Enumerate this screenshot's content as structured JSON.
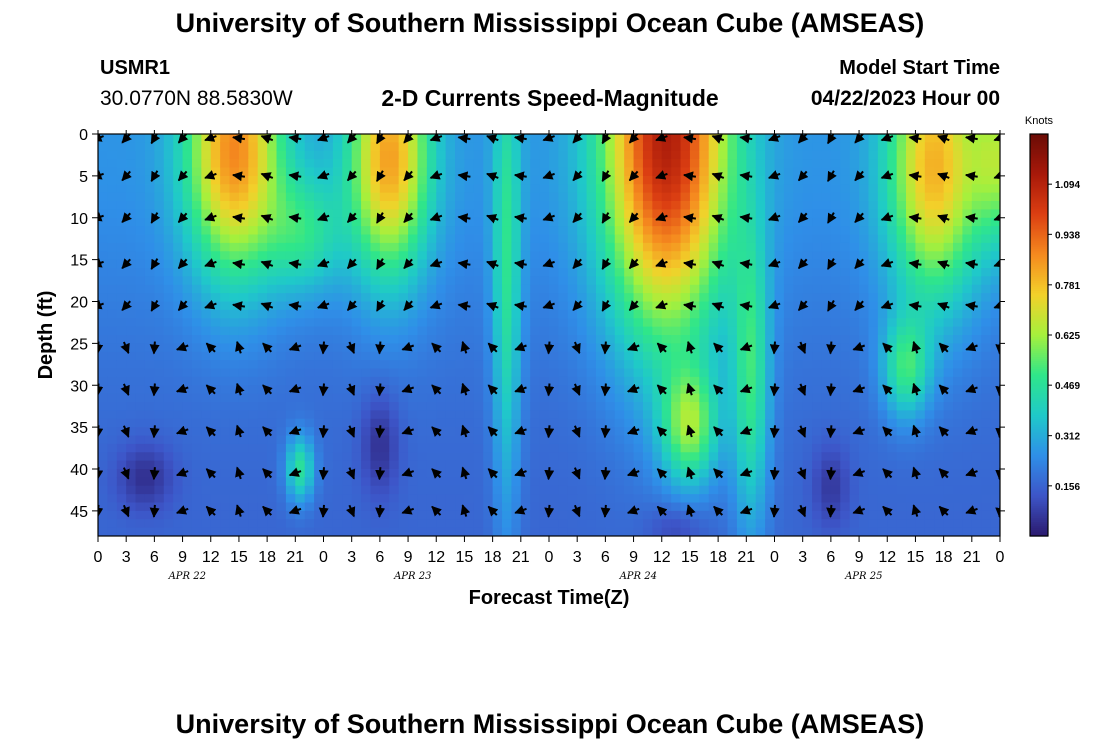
{
  "header": {
    "title": "University of Southern Mississippi Ocean Cube (AMSEAS)",
    "station_id": "USMR1",
    "station_coords": "30.0770N  88.5830W",
    "subtitle": "2-D Currents Speed-Magnitude",
    "model_start_label": "Model Start Time",
    "model_start_value": "04/22/2023 Hour 00"
  },
  "footer": {
    "title": "University of Southern Mississippi Ocean Cube (AMSEAS)"
  },
  "chart_data": {
    "type": "heatmap",
    "title": "2-D Currents Speed-Magnitude",
    "xlabel": "Forecast Time(Z)",
    "ylabel": "Depth (ft)",
    "x_hours": [
      0,
      96
    ],
    "x_tick_labels": [
      "0",
      "3",
      "6",
      "9",
      "12",
      "15",
      "18",
      "21",
      "0",
      "3",
      "6",
      "9",
      "12",
      "15",
      "18",
      "21",
      "0",
      "3",
      "6",
      "9",
      "12",
      "15",
      "18",
      "21",
      "0",
      "3",
      "6",
      "9",
      "12",
      "15",
      "18",
      "21",
      "0"
    ],
    "date_labels": [
      {
        "label": "APR 22",
        "hour": 9.5
      },
      {
        "label": "APR 23",
        "hour": 33.5
      },
      {
        "label": "APR 24",
        "hour": 57.5
      },
      {
        "label": "APR 25",
        "hour": 81.5
      }
    ],
    "y_range_ft": [
      0,
      48
    ],
    "y_ticks": [
      0,
      5,
      10,
      15,
      20,
      25,
      30,
      35,
      40,
      45
    ],
    "colorbar": {
      "unit": "Knots",
      "range": [
        0,
        1.25
      ],
      "tick_values": [
        0.156,
        0.312,
        0.469,
        0.625,
        0.781,
        0.938,
        1.094
      ],
      "tick_labels": [
        "0.156",
        "0.312",
        "0.469",
        "0.625",
        "0.781",
        "0.938",
        "1.094"
      ],
      "colors": [
        "#2b1a6e",
        "#3d55c8",
        "#2f8fe8",
        "#1fc9c9",
        "#2fe68a",
        "#a6f03c",
        "#f2d12a",
        "#f58a1f",
        "#dc3f12",
        "#a8190a",
        "#6a0c06"
      ]
    },
    "speed_field_description": "surface-intensified current pulses near hours 10-20, 30-35, 56-72, 84-92; weak flow at depth",
    "vector_rows_ft": [
      0.5,
      5,
      10,
      15.5,
      20.5,
      25.5,
      30.5,
      35.5,
      40.5,
      45
    ]
  }
}
